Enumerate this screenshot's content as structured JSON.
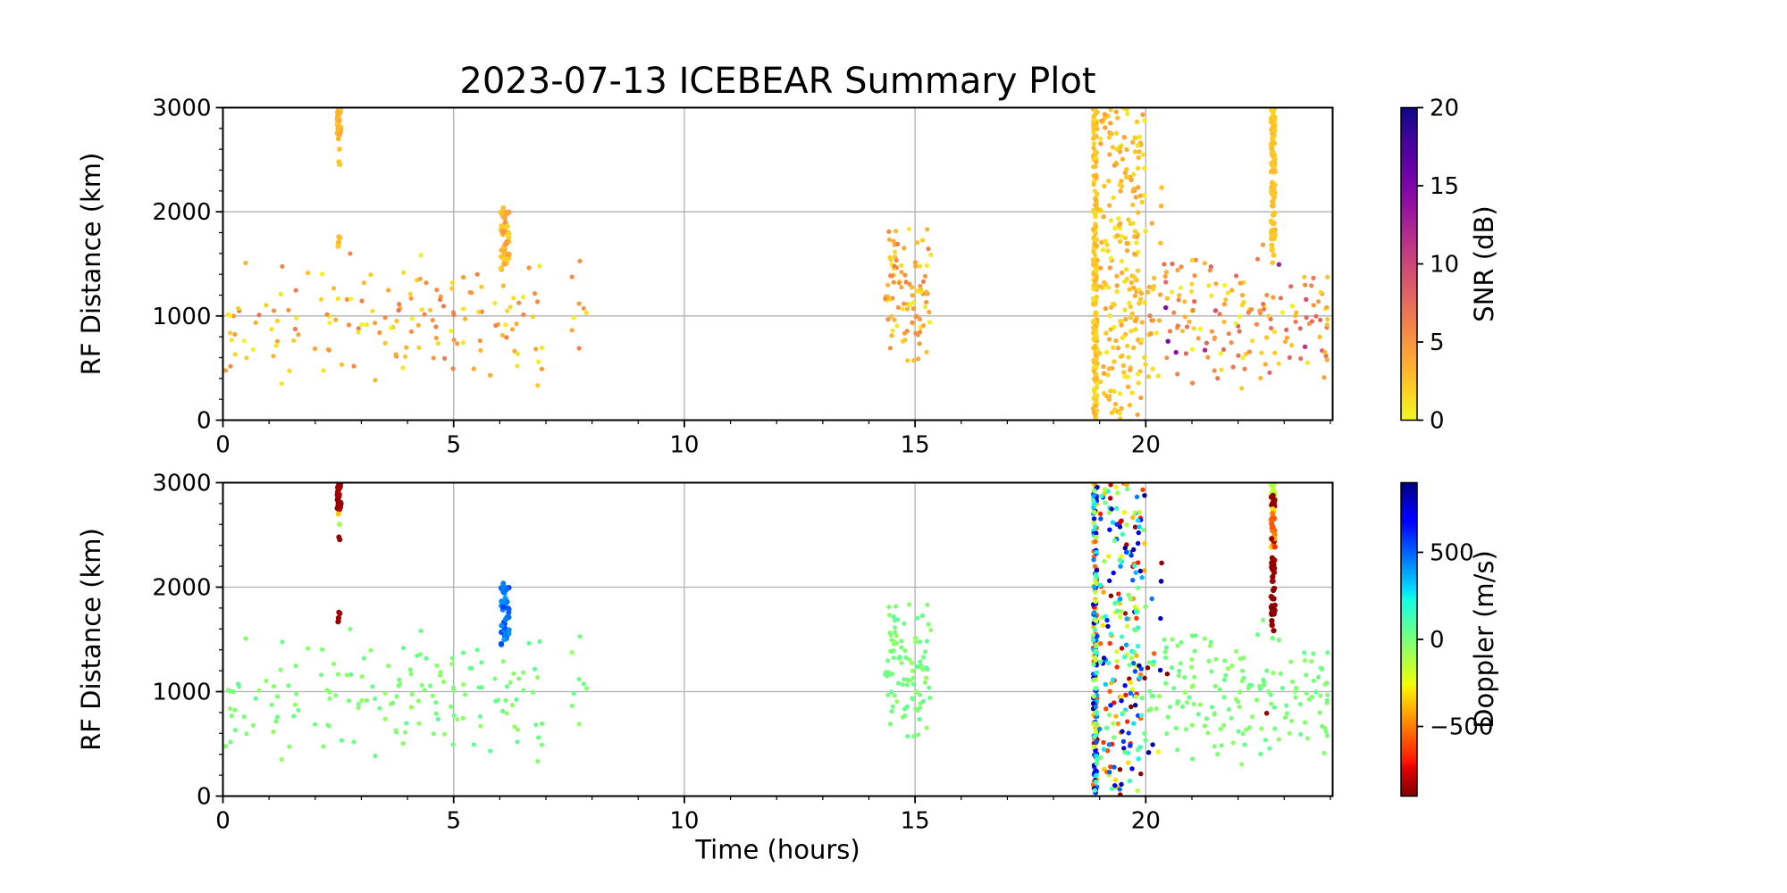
{
  "figure": {
    "title": "2023-07-13 ICEBEAR Summary Plot",
    "background": "#ffffff"
  },
  "styles": {
    "grid_color": "#b0b0b0",
    "spine_color": "#000000",
    "text_color": "#000000"
  },
  "chart_data": {
    "type": "scatter",
    "title": "2023-07-13 ICEBEAR Summary Plot",
    "panels": [
      {
        "name": "snr",
        "ylabel": "RF Distance (km)",
        "xlabel": "",
        "xlim": [
          0,
          24.05
        ],
        "ylim": [
          0,
          3000
        ],
        "xticks": [
          0,
          5,
          10,
          15,
          20
        ],
        "xtick_labels": [
          "0",
          "5",
          "10",
          "15",
          "20"
        ],
        "yticks": [
          0,
          1000,
          2000,
          3000
        ],
        "ytick_labels": [
          "0",
          "1000",
          "2000",
          "3000"
        ],
        "x_minor_step": 1,
        "y_minor_step": 200,
        "grid": true,
        "color_by": "snr",
        "colorbar": {
          "label": "SNR (dB)",
          "vmin": 0,
          "vmax": 20,
          "colormap": "plasma_r",
          "ticks": [
            {
              "v": 0,
              "label": "0"
            },
            {
              "v": 5,
              "label": "5"
            },
            {
              "v": 10,
              "label": "10"
            },
            {
              "v": 15,
              "label": "15"
            },
            {
              "v": 20,
              "label": "20"
            }
          ]
        }
      },
      {
        "name": "doppler",
        "ylabel": "RF Distance (km)",
        "xlabel": "Time (hours)",
        "xlim": [
          0,
          24.05
        ],
        "ylim": [
          0,
          3000
        ],
        "xticks": [
          0,
          5,
          10,
          15,
          20
        ],
        "xtick_labels": [
          "0",
          "5",
          "10",
          "15",
          "20"
        ],
        "yticks": [
          0,
          1000,
          2000,
          3000
        ],
        "ytick_labels": [
          "0",
          "1000",
          "2000",
          "3000"
        ],
        "x_minor_step": 1,
        "y_minor_step": 200,
        "grid": true,
        "color_by": "dop",
        "colorbar": {
          "label": "Doppler (m/s)",
          "vmin": -900,
          "vmax": 900,
          "colormap": "jet_r",
          "ticks": [
            {
              "v": 500,
              "label": "500"
            },
            {
              "v": 0,
              "label": "0"
            },
            {
              "v": -500,
              "label": "−500"
            }
          ]
        }
      }
    ],
    "colormaps": {
      "plasma_r": [
        [
          0.0,
          "#f0f921"
        ],
        [
          0.1,
          "#fcce25"
        ],
        [
          0.2,
          "#fca636"
        ],
        [
          0.3,
          "#f2844b"
        ],
        [
          0.4,
          "#e16462"
        ],
        [
          0.5,
          "#cc4778"
        ],
        [
          0.6,
          "#b12a90"
        ],
        [
          0.7,
          "#8f0da4"
        ],
        [
          0.8,
          "#6a00a8"
        ],
        [
          0.9,
          "#41049d"
        ],
        [
          1.0,
          "#0d0887"
        ]
      ],
      "jet_r": [
        [
          0.0,
          "#800000"
        ],
        [
          0.09,
          "#e60000"
        ],
        [
          0.11,
          "#ff1400"
        ],
        [
          0.25,
          "#ff9600"
        ],
        [
          0.34,
          "#ffeb00"
        ],
        [
          0.36,
          "#eeff09"
        ],
        [
          0.5,
          "#7bff7b"
        ],
        [
          0.625,
          "#15ffe4"
        ],
        [
          0.66,
          "#00dcff"
        ],
        [
          0.875,
          "#0000ff"
        ],
        [
          0.89,
          "#0000ff"
        ],
        [
          1.0,
          "#000080"
        ]
      ]
    },
    "shared_points": {
      "seed": 20230713,
      "clusters": [
        {
          "name": "background-early",
          "n": 160,
          "t": [
            0.05,
            7.9
          ],
          "rf": [
            280,
            1680
          ],
          "rf_dist": "central",
          "snr": [
            0,
            7
          ],
          "dop": [
            -60,
            60
          ],
          "r": 2.6
        },
        {
          "name": "streak-2.5h-upper",
          "n": 30,
          "t": [
            2.48,
            2.56
          ],
          "rf": [
            2740,
            2995
          ],
          "snr": [
            2,
            4
          ],
          "dop": [
            -885,
            -830
          ],
          "r": 3.1
        },
        {
          "name": "streak-2.5h-orange-dot",
          "n": 1,
          "t": [
            2.5,
            2.54
          ],
          "rf": [
            2700,
            2725
          ],
          "snr": [
            2.5,
            3.5
          ],
          "dop": [
            -420,
            -360
          ],
          "r": 3.0
        },
        {
          "name": "streak-2.5h-green-dot",
          "n": 1,
          "t": [
            2.5,
            2.54
          ],
          "rf": [
            2590,
            2615
          ],
          "snr": [
            2,
            3
          ],
          "dop": [
            -140,
            -80
          ],
          "r": 3.0
        },
        {
          "name": "streak-2.5h-red-dots",
          "n": 2,
          "t": [
            2.49,
            2.54
          ],
          "rf": [
            2440,
            2500
          ],
          "snr": [
            2,
            3.5
          ],
          "dop": [
            -880,
            -845
          ],
          "r": 3.0
        },
        {
          "name": "streak-2.5h-lower",
          "n": 6,
          "t": [
            2.49,
            2.55
          ],
          "rf": [
            1600,
            1765
          ],
          "snr": [
            2,
            4
          ],
          "dop": [
            -880,
            -835
          ],
          "r": 3.0
        },
        {
          "name": "streak-6.1h",
          "n": 42,
          "t": [
            6.02,
            6.2
          ],
          "rf": [
            1445,
            2005
          ],
          "snr": [
            1.5,
            5
          ],
          "dop": [
            390,
            580
          ],
          "r": 3.1
        },
        {
          "name": "streak-6.1h-top-dot",
          "n": 1,
          "t": [
            6.05,
            6.1
          ],
          "rf": [
            2035,
            2060
          ],
          "snr": [
            2,
            3
          ],
          "dop": [
            440,
            520
          ],
          "r": 3.0
        },
        {
          "name": "cluster-15h",
          "n": 95,
          "t": [
            14.35,
            15.35
          ],
          "rf": [
            480,
            1990
          ],
          "rf_dist": "central",
          "snr": [
            0.5,
            6.5
          ],
          "dop": [
            -70,
            70
          ],
          "r": 2.6
        },
        {
          "name": "line-18.9h-neg",
          "n": 90,
          "t": [
            18.86,
            18.95
          ],
          "rf": [
            15,
            2990
          ],
          "snr": [
            1,
            3.5
          ],
          "dop": [
            -900,
            -200
          ],
          "r": 2.7
        },
        {
          "name": "line-18.9h-pos",
          "n": 90,
          "t": [
            18.86,
            18.95
          ],
          "rf": [
            15,
            2990
          ],
          "snr": [
            1,
            3.5
          ],
          "dop": [
            200,
            900
          ],
          "r": 2.7
        },
        {
          "name": "line-18.9h-mid",
          "n": 40,
          "t": [
            18.86,
            18.95
          ],
          "rf": [
            15,
            2990
          ],
          "snr": [
            1,
            3.5
          ],
          "dop": [
            -200,
            200
          ],
          "r": 2.7
        },
        {
          "name": "band-19-20h-neg",
          "n": 85,
          "t": [
            18.97,
            19.98
          ],
          "rf": [
            10,
            2995
          ],
          "snr": [
            0.5,
            4.5
          ],
          "dop": [
            -900,
            -150
          ],
          "r": 2.7
        },
        {
          "name": "band-19-20h-pos",
          "n": 85,
          "t": [
            18.97,
            19.98
          ],
          "rf": [
            10,
            2995
          ],
          "snr": [
            0.5,
            4.5
          ],
          "dop": [
            150,
            900
          ],
          "r": 2.7
        },
        {
          "name": "band-19-20h-mid",
          "n": 45,
          "t": [
            18.97,
            19.98
          ],
          "rf": [
            10,
            2995
          ],
          "snr": [
            0.5,
            4.5
          ],
          "dop": [
            -150,
            150
          ],
          "r": 2.7
        },
        {
          "name": "band-tail-20h",
          "n": 14,
          "t": [
            19.99,
            20.5
          ],
          "rf": [
            350,
            2350
          ],
          "snr": [
            1,
            4
          ],
          "dop": [
            -900,
            900
          ],
          "r": 2.7
        },
        {
          "name": "background-late",
          "n": 150,
          "t": [
            20.05,
            23.95
          ],
          "rf": [
            260,
            1780
          ],
          "rf_dist": "central",
          "snr": [
            0,
            8
          ],
          "dop": [
            -60,
            60
          ],
          "r": 2.6
        },
        {
          "name": "background-late-high-snr",
          "n": 8,
          "t": [
            20.3,
            23.8
          ],
          "rf": [
            600,
            1600
          ],
          "snr": [
            9,
            15
          ],
          "dop": [
            -40,
            40
          ],
          "r": 2.7
        },
        {
          "name": "late-doppler-outlier",
          "n": 1,
          "t": [
            22.6,
            22.72
          ],
          "rf": [
            780,
            820
          ],
          "snr": [
            2,
            5
          ],
          "dop": [
            -880,
            -840
          ],
          "r": 2.8
        },
        {
          "name": "dot-20.4h-darkred",
          "n": 1,
          "t": [
            20.3,
            20.45
          ],
          "rf": [
            2230,
            2260
          ],
          "snr": [
            2,
            4
          ],
          "dop": [
            -890,
            -860
          ],
          "r": 2.8
        },
        {
          "name": "dot-20.4h-navy",
          "n": 1,
          "t": [
            20.3,
            20.45
          ],
          "rf": [
            2040,
            2070
          ],
          "snr": [
            2,
            4
          ],
          "dop": [
            840,
            880
          ],
          "r": 2.8
        },
        {
          "name": "streak-22.75h-a",
          "n": 10,
          "t": [
            22.72,
            22.8
          ],
          "rf": [
            2880,
            2998
          ],
          "snr": [
            1.5,
            3
          ],
          "dop": [
            -200,
            -90
          ],
          "r": 3.1
        },
        {
          "name": "streak-22.75h-b",
          "n": 12,
          "t": [
            22.72,
            22.8
          ],
          "rf": [
            2770,
            2885
          ],
          "snr": [
            2,
            3
          ],
          "dop": [
            -890,
            -850
          ],
          "r": 3.1
        },
        {
          "name": "streak-22.75h-c",
          "n": 3,
          "t": [
            22.72,
            22.8
          ],
          "rf": [
            2705,
            2770
          ],
          "snr": [
            2,
            3
          ],
          "dop": [
            -330,
            -270
          ],
          "r": 3.0
        },
        {
          "name": "streak-22.75h-d",
          "n": 14,
          "t": [
            22.72,
            22.8
          ],
          "rf": [
            2490,
            2705
          ],
          "snr": [
            2,
            3
          ],
          "dop": [
            -620,
            -480
          ],
          "r": 3.1
        },
        {
          "name": "streak-22.75h-e",
          "n": 8,
          "t": [
            22.72,
            22.8
          ],
          "rf": [
            2300,
            2490
          ],
          "snr": [
            2,
            3
          ],
          "dop": [
            -880,
            -300
          ],
          "r": 3.1
        },
        {
          "name": "streak-22.75h-f",
          "n": 32,
          "t": [
            22.72,
            22.8
          ],
          "rf": [
            1515,
            2300
          ],
          "snr": [
            2,
            3
          ],
          "dop": [
            -890,
            -845
          ],
          "r": 3.1
        },
        {
          "name": "streak-22.75h-end",
          "n": 1,
          "t": [
            22.73,
            22.78
          ],
          "rf": [
            1490,
            1515
          ],
          "snr": [
            2,
            3
          ],
          "dop": [
            -30,
            30
          ],
          "r": 2.8
        }
      ]
    }
  }
}
